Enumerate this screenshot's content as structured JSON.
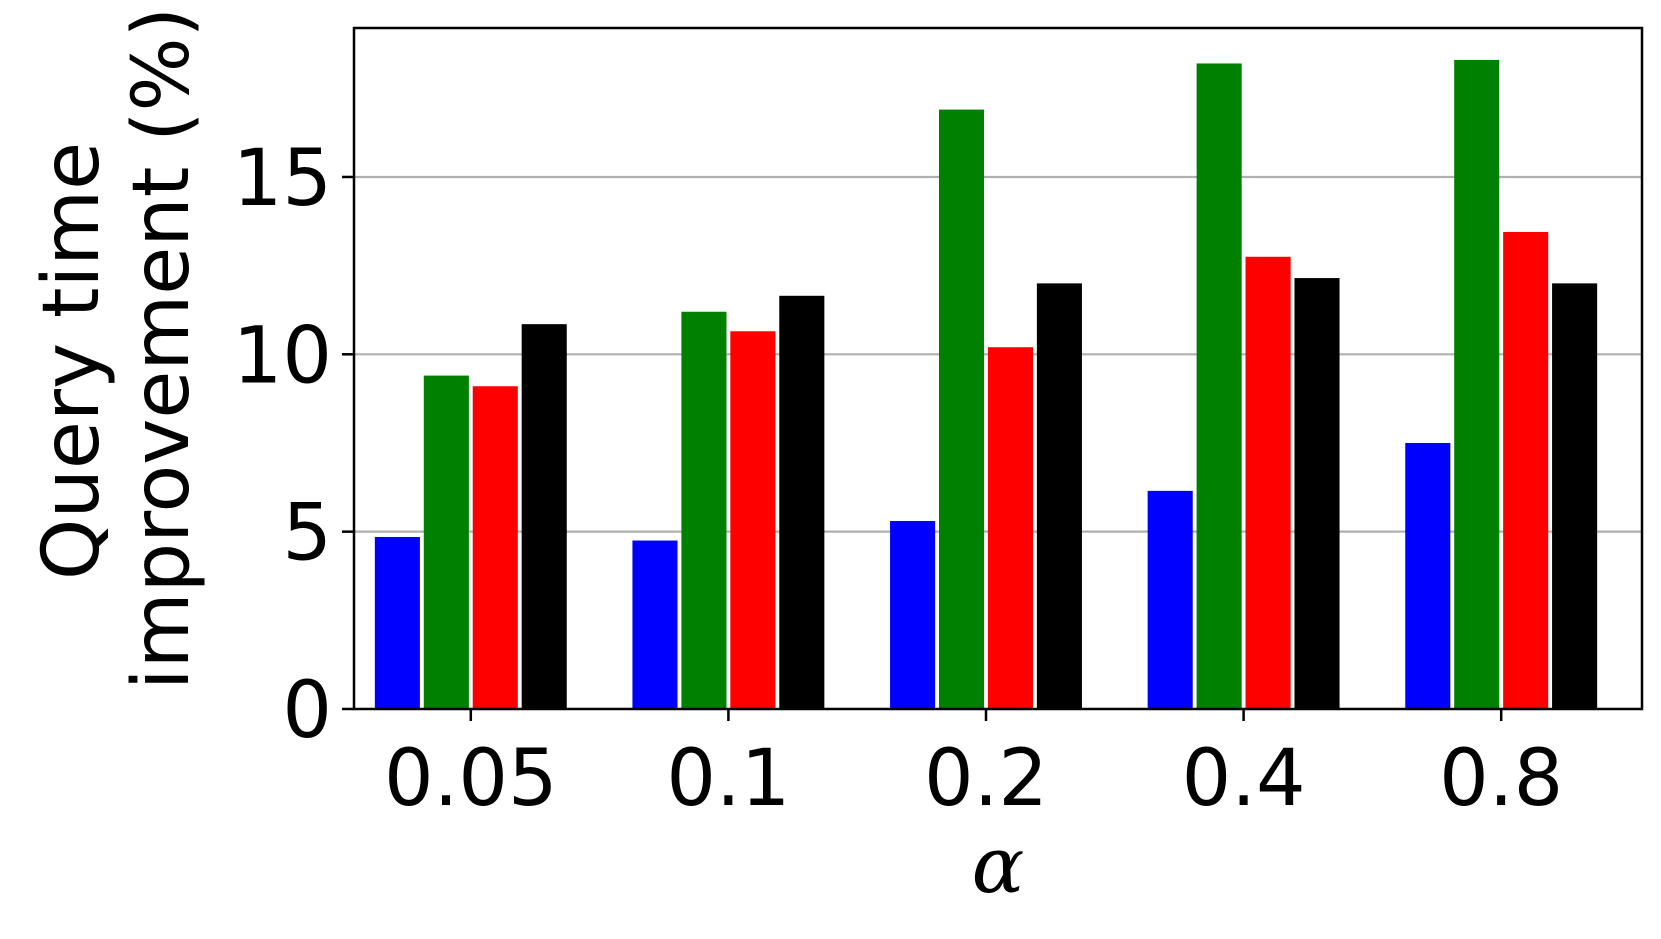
{
  "chart_data": {
    "type": "bar",
    "title": "",
    "xlabel": "α",
    "ylabel_lines": [
      "Query time",
      "improvement (%)"
    ],
    "categories": [
      "0.05",
      "0.1",
      "0.2",
      "0.4",
      "0.8"
    ],
    "ylim": [
      0,
      19.2
    ],
    "yticks": [
      0,
      5,
      10,
      15
    ],
    "grid": true,
    "legend": "none",
    "series": [
      {
        "color": "#0000ff",
        "values": [
          4.85,
          4.75,
          5.3,
          6.15,
          7.5
        ]
      },
      {
        "color": "#008000",
        "values": [
          9.4,
          11.2,
          16.9,
          18.2,
          18.3
        ]
      },
      {
        "color": "#ff0000",
        "values": [
          9.1,
          10.65,
          10.2,
          12.75,
          13.45
        ]
      },
      {
        "color": "#000000",
        "values": [
          10.85,
          11.65,
          12.0,
          12.15,
          12.0
        ]
      }
    ]
  }
}
